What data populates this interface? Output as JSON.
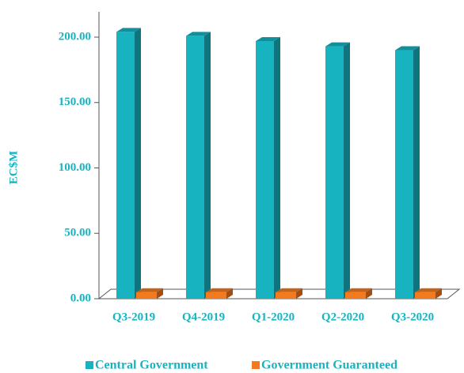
{
  "chart_data": {
    "type": "bar3d",
    "y_label": "EC$M",
    "categories": [
      "Q3-2019",
      "Q4-2019",
      "Q1-2020",
      "Q2-2020",
      "Q3-2020"
    ],
    "series": [
      {
        "name": "Central Government",
        "color": "#17b3c1",
        "values": [
          204,
          201,
          197,
          193,
          190
        ]
      },
      {
        "name": "Government Guaranteed",
        "color": "#f47a1f",
        "values": [
          5,
          5,
          5,
          5,
          5
        ]
      }
    ],
    "ylim": [
      0,
      200
    ],
    "yticks": [
      {
        "value": 0,
        "label": "0.00"
      },
      {
        "value": 50,
        "label": "50.00"
      },
      {
        "value": 100,
        "label": "100.00"
      },
      {
        "value": 150,
        "label": "150.00"
      },
      {
        "value": 200,
        "label": "200.00"
      }
    ],
    "grid": false,
    "legend": "bottom"
  }
}
